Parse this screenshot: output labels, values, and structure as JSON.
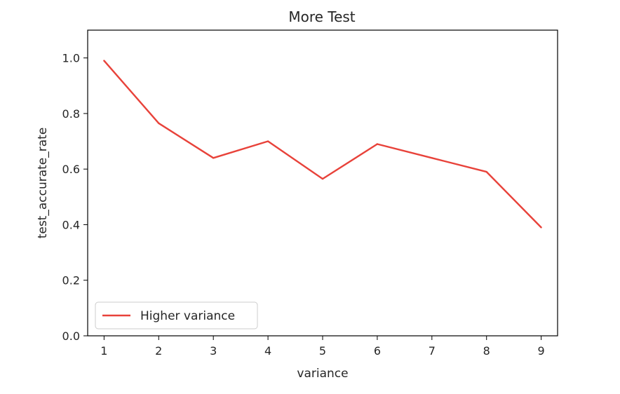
{
  "chart_data": {
    "type": "line",
    "title": "More Test",
    "xlabel": "variance",
    "ylabel": "test_accurate_rate",
    "xlim": [
      0.7,
      9.3
    ],
    "ylim": [
      0.0,
      1.1
    ],
    "xticks": [
      1,
      2,
      3,
      4,
      5,
      6,
      7,
      8,
      9
    ],
    "yticks": [
      0.0,
      0.2,
      0.4,
      0.6,
      0.8,
      1.0
    ],
    "ytick_labels": [
      "0.0",
      "0.2",
      "0.4",
      "0.6",
      "0.8",
      "1.0"
    ],
    "grid": false,
    "legend": {
      "placement": "lower-left"
    },
    "series": [
      {
        "name": "Higher variance",
        "color": "#e8423a",
        "x": [
          1,
          2,
          3,
          4,
          5,
          6,
          7,
          8,
          9
        ],
        "y": [
          0.99,
          0.765,
          0.64,
          0.7,
          0.565,
          0.69,
          0.64,
          0.59,
          0.39
        ]
      }
    ]
  }
}
